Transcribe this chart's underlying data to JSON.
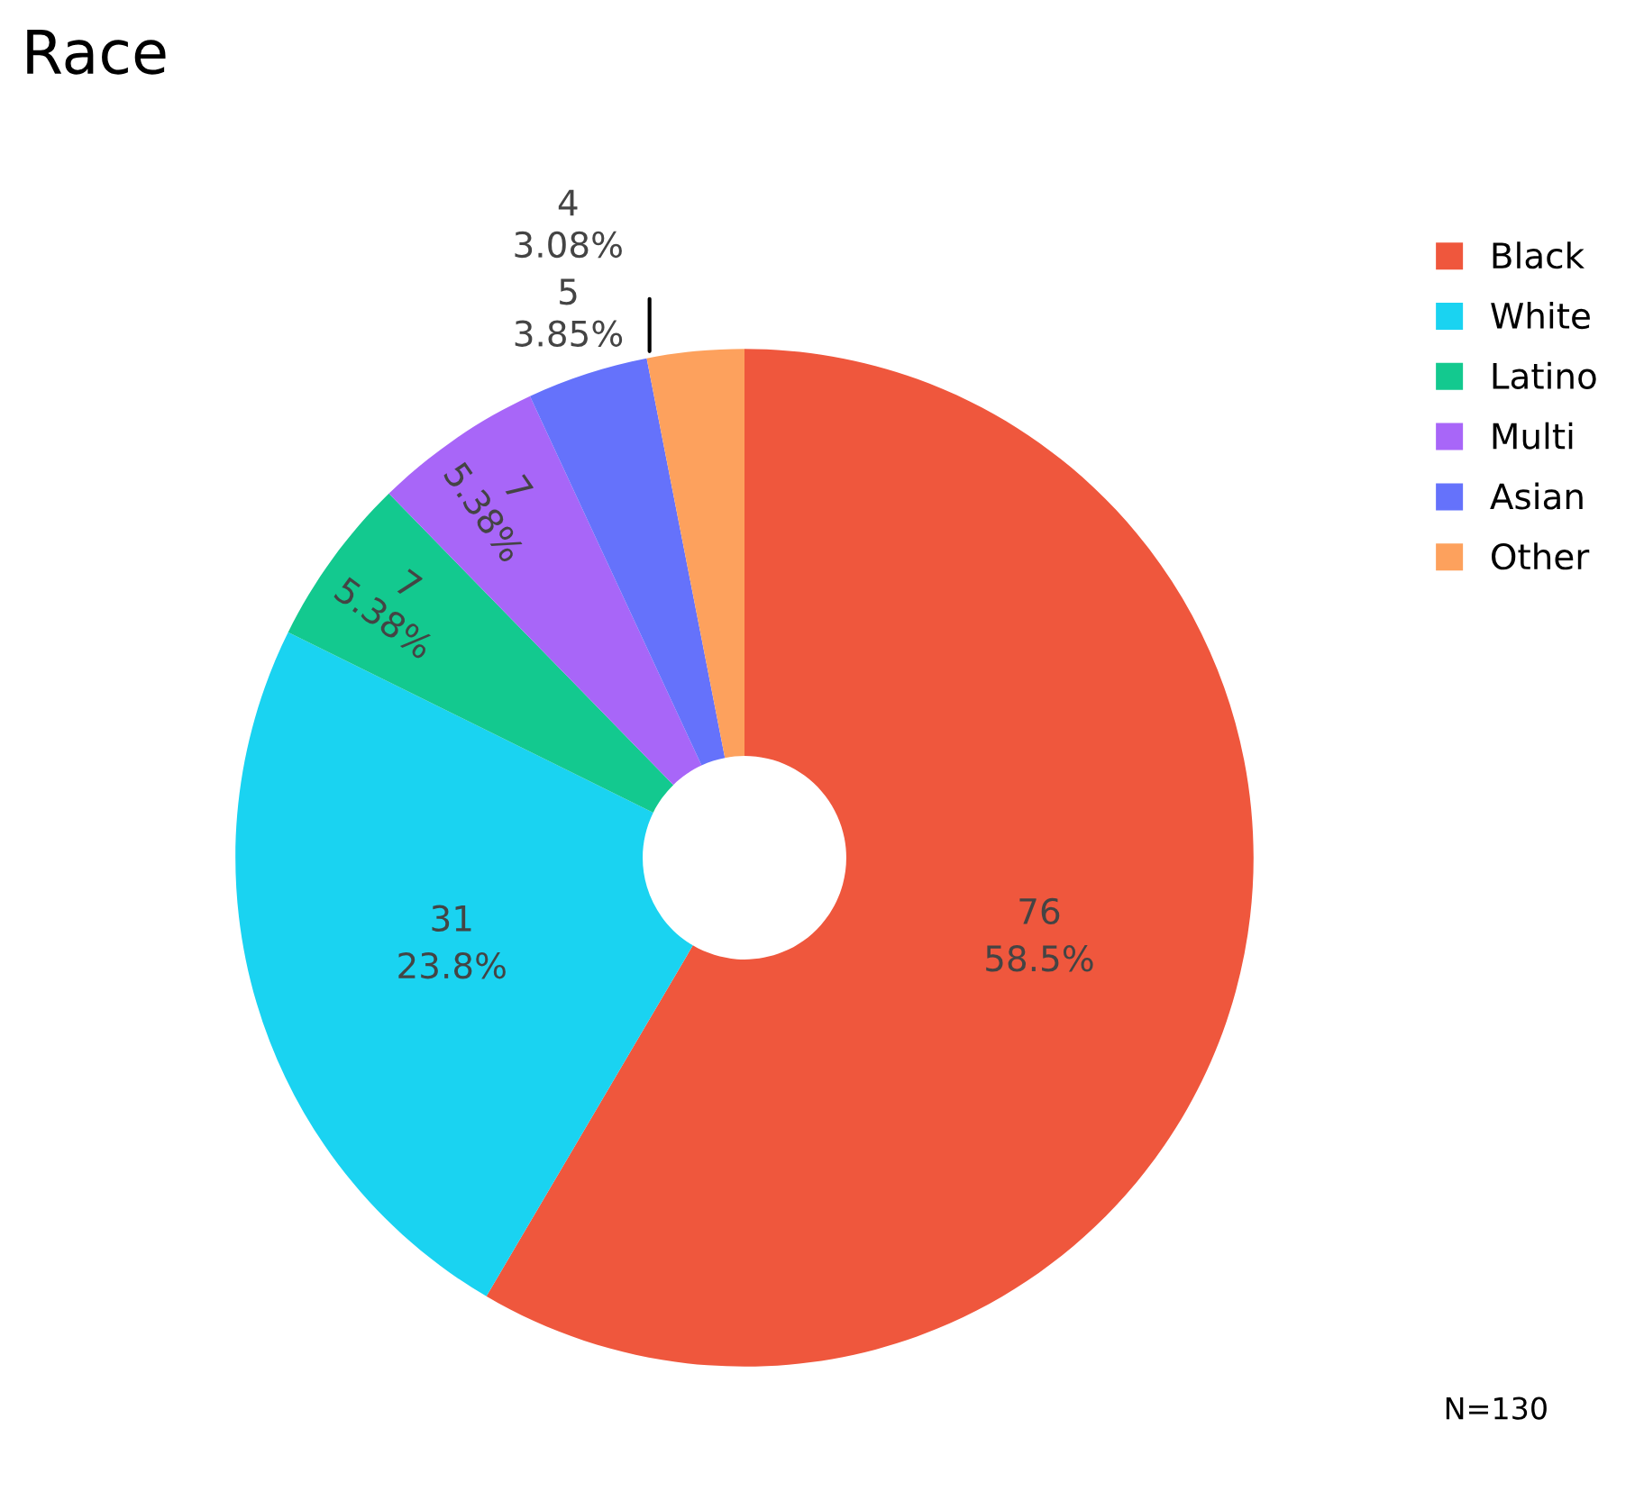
{
  "chart_data": {
    "type": "donut",
    "title": "Race",
    "categories": [
      "Black",
      "White",
      "Latino",
      "Multi",
      "Asian",
      "Other"
    ],
    "values": [
      76,
      31,
      7,
      7,
      5,
      4
    ],
    "colors": [
      "#ef573d",
      "#1ad3f1",
      "#13c98f",
      "#a866f8",
      "#6572fb",
      "#fda15d"
    ],
    "value_labels": [
      "76\n58.5%",
      "31\n23.8%",
      "7\n5.38%",
      "7\n5.38%",
      "5\n3.85%",
      "4\n3.08%"
    ],
    "legend": "right",
    "annotations": [
      "N=130"
    ]
  }
}
